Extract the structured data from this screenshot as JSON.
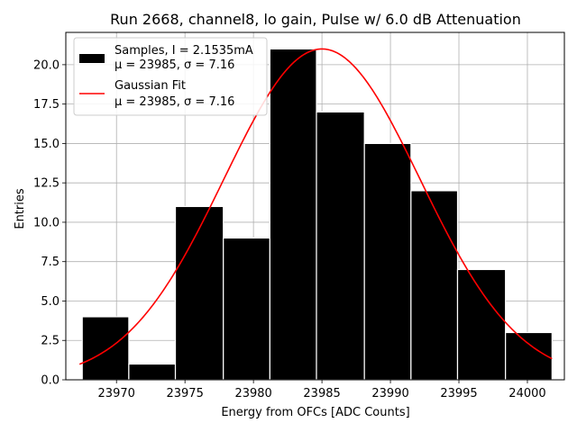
{
  "chart_data": {
    "type": "bar",
    "title": "Run 2668, channel8, lo gain, Pulse w/ 6.0 dB Attenuation",
    "xlabel": "Energy from OFCs [ADC Counts]",
    "ylabel": "Entries",
    "xlim": [
      23966.3,
      24002.7
    ],
    "ylim": [
      0,
      22.05
    ],
    "grid": true,
    "x_ticks": [
      23970,
      23975,
      23980,
      23985,
      23990,
      23995,
      24000
    ],
    "x_tick_labels": [
      "23970",
      "23975",
      "23980",
      "23985",
      "23990",
      "23995",
      "24000"
    ],
    "y_ticks": [
      0,
      2.5,
      5,
      7.5,
      10,
      12.5,
      15,
      17.5,
      20
    ],
    "y_tick_labels": [
      "0.0",
      "2.5",
      "5.0",
      "7.5",
      "10.0",
      "12.5",
      "15.0",
      "17.5",
      "20.0"
    ],
    "histogram": {
      "name": "Samples, I = 2.1535mA",
      "stats": "μ = 23985, σ = 7.16",
      "color": "#000000",
      "edge_color": "#ffffff",
      "bin_edges": [
        23967.5,
        23970.9,
        23974.3,
        23977.8,
        23981.2,
        23984.6,
        23988.1,
        23991.5,
        23994.9,
        23998.4,
        24001.8
      ],
      "counts": [
        4,
        1,
        11,
        9,
        21,
        17,
        15,
        12,
        7,
        3
      ]
    },
    "fit": {
      "name": "Gaussian Fit",
      "stats": "μ = 23985, σ = 7.16",
      "color": "#ff0000",
      "mu": 23985,
      "sigma": 7.16,
      "amplitude": 21.0,
      "x_range": [
        23967.3,
        24001.8
      ]
    },
    "legend_position": "top-left"
  }
}
